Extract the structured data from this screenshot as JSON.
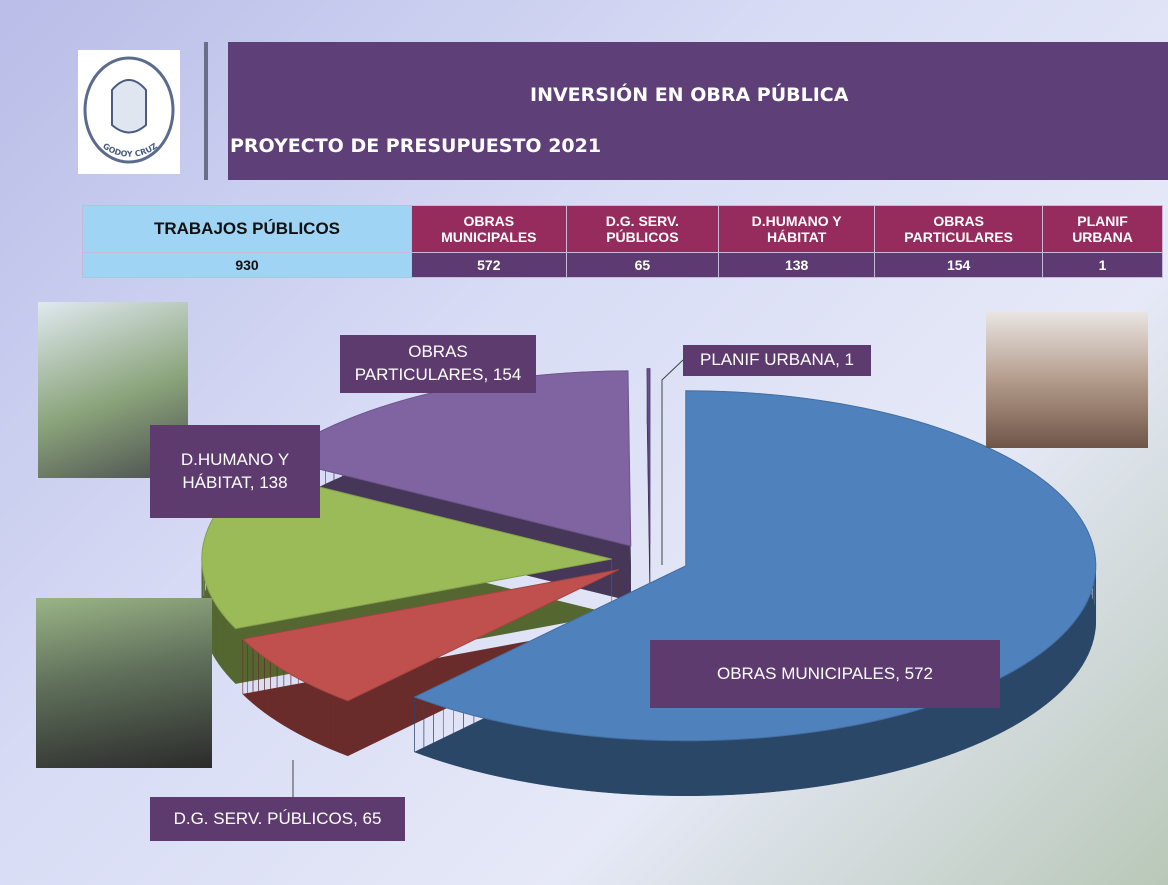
{
  "header": {
    "title": "INVERSIÓN EN OBRA PÚBLICA",
    "subtitle": "PROYECTO DE PRESUPUESTO 2021",
    "logo_text": "GODOY CRUZ"
  },
  "table": {
    "total_label": "TRABAJOS PÚBLICOS",
    "total": 930,
    "columns": [
      "OBRAS MUNICIPALES",
      "D.G. SERV. PÚBLICOS",
      "D.HUMANO Y HÁBITAT",
      "OBRAS PARTICULARES",
      "PLANIF URBANA"
    ],
    "values": [
      572,
      65,
      138,
      154,
      1
    ]
  },
  "chart_data": {
    "type": "pie",
    "values": [
      572,
      65,
      138,
      154,
      1
    ],
    "value_labels": [
      "OBRAS MUNICIPALES, 572",
      "D.G. SERV. PÚBLICOS, 65",
      "D.HUMANO Y HÁBITAT, 138",
      "OBRAS PARTICULARES, 154",
      "PLANIF URBANA, 1"
    ],
    "colors": [
      "#4f81bd",
      "#c0504d",
      "#9bbb59",
      "#8064a2",
      "#6b4f8f"
    ]
  }
}
